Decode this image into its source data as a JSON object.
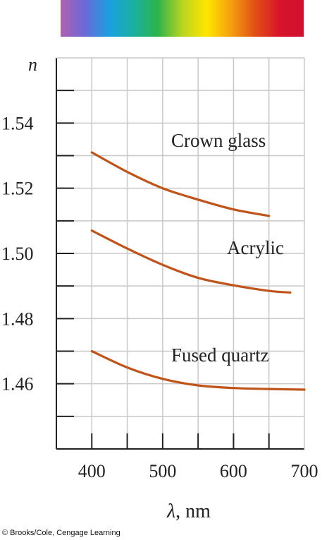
{
  "chart_data": {
    "type": "line",
    "xlabel": "λ, nm",
    "ylabel": "n",
    "xlim": [
      350,
      700
    ],
    "ylim": [
      1.44,
      1.56
    ],
    "x_ticks": [
      400,
      500,
      600,
      700
    ],
    "y_ticks": [
      1.46,
      1.48,
      1.5,
      1.52,
      1.54
    ],
    "grid": true,
    "line_color": "#c0531a",
    "series": [
      {
        "name": "Crown glass",
        "x": [
          400,
          450,
          500,
          550,
          600,
          650
        ],
        "y": [
          1.531,
          1.525,
          1.52,
          1.5165,
          1.5135,
          1.5115
        ]
      },
      {
        "name": "Acrylic",
        "x": [
          400,
          450,
          500,
          550,
          600,
          650,
          680
        ],
        "y": [
          1.507,
          1.5015,
          1.4965,
          1.4925,
          1.4902,
          1.4885,
          1.488
        ]
      },
      {
        "name": "Fused quartz",
        "x": [
          400,
          450,
          500,
          550,
          600,
          650,
          700
        ],
        "y": [
          1.47,
          1.465,
          1.4615,
          1.4595,
          1.4587,
          1.4584,
          1.4582
        ]
      }
    ],
    "spectrum_colors": [
      "#b060b0",
      "#6a6ad8",
      "#1aa0e0",
      "#19b0a0",
      "#2db34a",
      "#b8d420",
      "#ffe600",
      "#f5a010",
      "#e05015",
      "#d8142a",
      "#d01030"
    ]
  },
  "credit": "© Brooks/Cole, Cengage Learning"
}
